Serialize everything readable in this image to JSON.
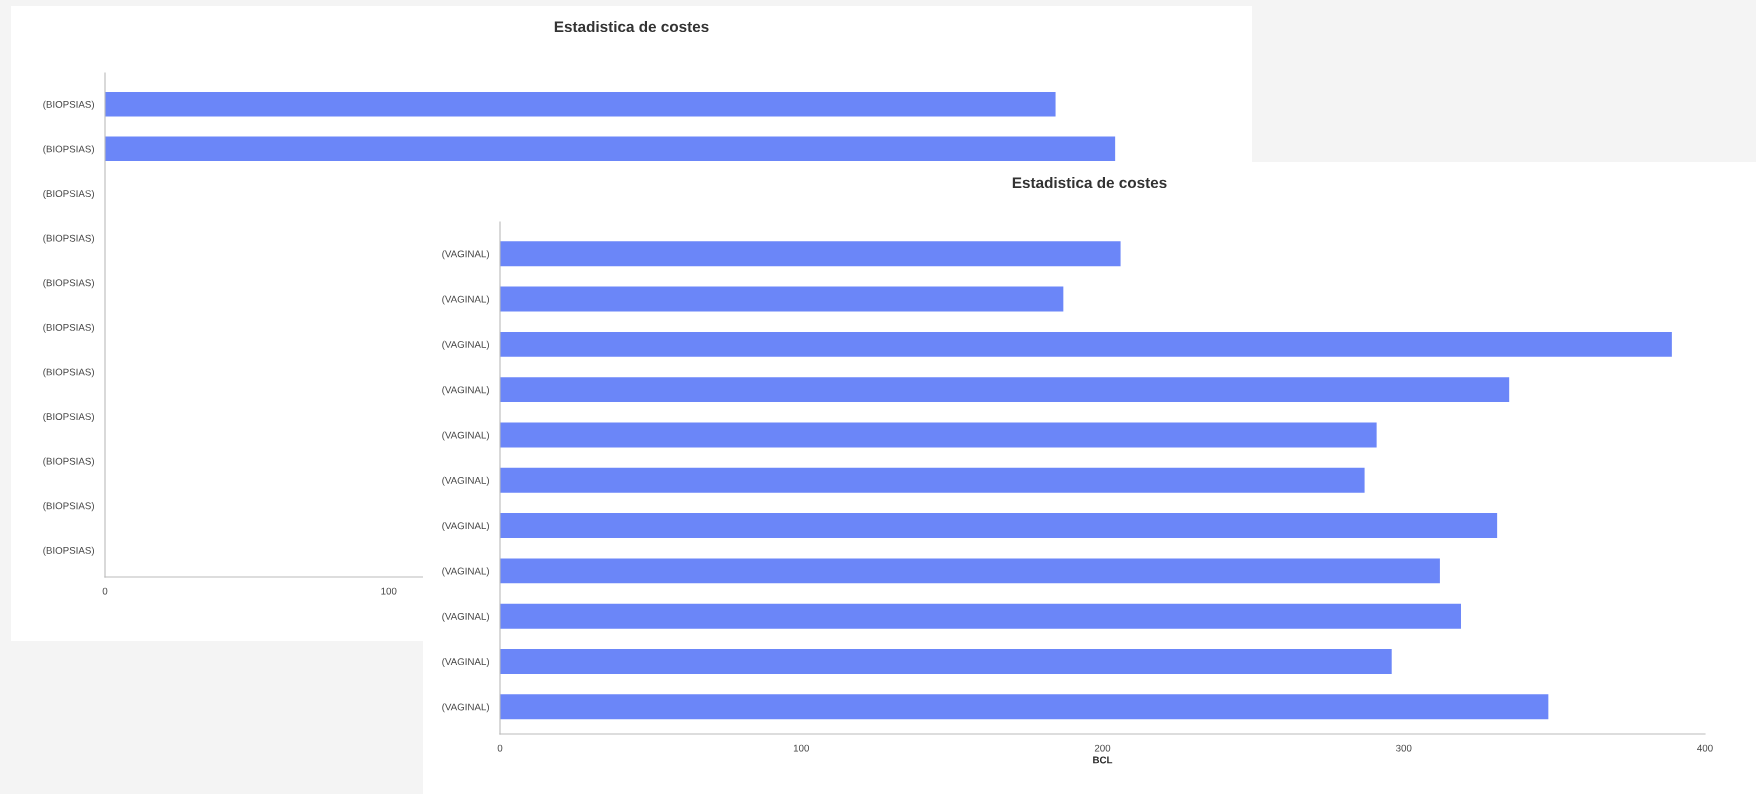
{
  "chart_data": [
    {
      "type": "bar",
      "orientation": "horizontal",
      "title": "Estadistica de costes",
      "categories": [
        "(BIOPSIAS)",
        "(BIOPSIAS)",
        "(BIOPSIAS)",
        "(BIOPSIAS)",
        "(BIOPSIAS)",
        "(BIOPSIAS)",
        "(BIOPSIAS)",
        "(BIOPSIAS)",
        "(BIOPSIAS)",
        "(BIOPSIAS)",
        "(BIOPSIAS)"
      ],
      "values": [
        335,
        356,
        null,
        null,
        null,
        null,
        null,
        null,
        null,
        null,
        null
      ],
      "color": "#6b86f8",
      "xlim": [
        0,
        400
      ],
      "xticks": [
        0,
        100
      ],
      "grid": false
    },
    {
      "type": "bar",
      "orientation": "horizontal",
      "title": "Estadistica de costes",
      "xlabel": "BCL",
      "categories": [
        "(VAGINAL)",
        "(VAGINAL)",
        "(VAGINAL)",
        "(VAGINAL)",
        "(VAGINAL)",
        "(VAGINAL)",
        "(VAGINAL)",
        "(VAGINAL)",
        "(VAGINAL)",
        "(VAGINAL)",
        "(VAGINAL)"
      ],
      "values": [
        206,
        187,
        389,
        335,
        291,
        287,
        331,
        312,
        319,
        296,
        348
      ],
      "color": "#6b86f8",
      "xlim": [
        0,
        400
      ],
      "xticks": [
        0,
        100,
        200,
        300,
        400
      ],
      "grid": false
    }
  ]
}
